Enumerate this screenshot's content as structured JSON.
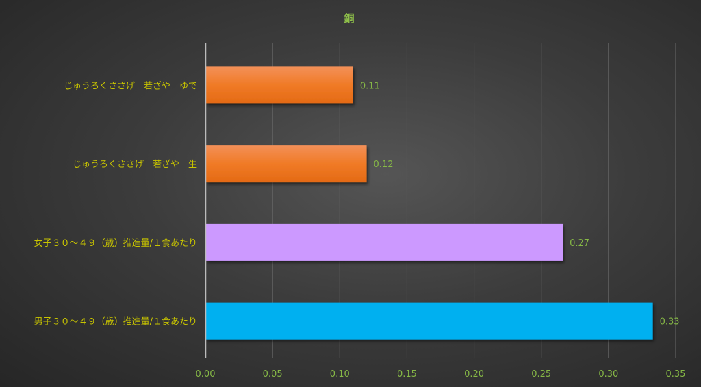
{
  "chart_data": {
    "type": "bar",
    "orientation": "horizontal",
    "title": "銅",
    "categories": [
      "じゅうろくささげ　若ざや　ゆで",
      "じゅうろくささげ　若ざや　生",
      "女子３０～４９（歳）推進量/１食あたり",
      "男子３０～４９（歳）推進量/１食あたり"
    ],
    "values": [
      0.11,
      0.12,
      0.266,
      0.333
    ],
    "data_labels": [
      "0.11",
      "0.12",
      "0.27",
      "0.33"
    ],
    "colors": [
      "#f07a2a",
      "#f07a2a",
      "#cc99ff",
      "#00b0f0"
    ],
    "xlim": [
      0,
      0.35
    ],
    "xticks": [
      "0.00",
      "0.05",
      "0.10",
      "0.15",
      "0.20",
      "0.25",
      "0.30",
      "0.35"
    ],
    "grid": "vertical",
    "legend": "none",
    "xlabel": "",
    "ylabel": ""
  }
}
